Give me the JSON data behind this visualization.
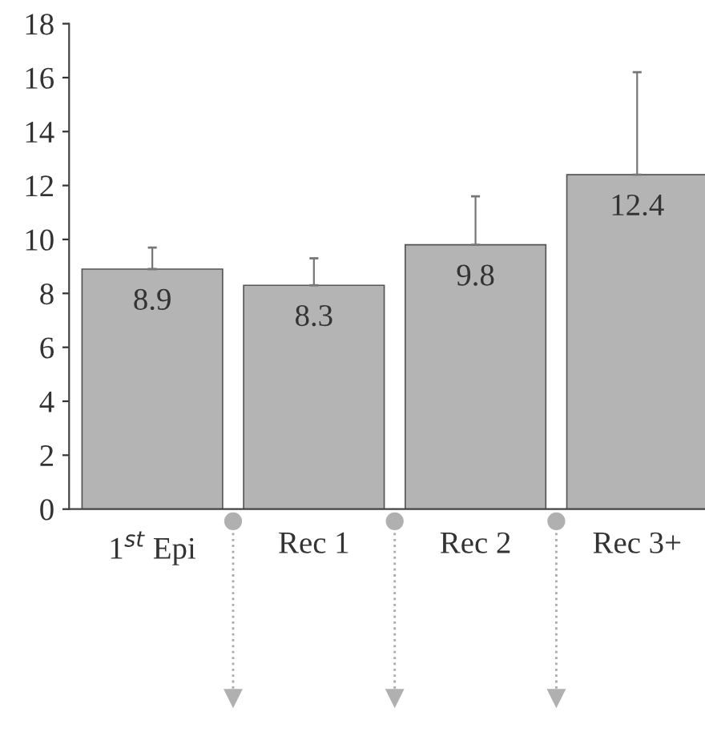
{
  "chart_data": {
    "type": "bar",
    "categories": [
      "1$^{st}$ Epi",
      "Rec 1",
      "Rec 2",
      "Rec 3+"
    ],
    "values": [
      8.9,
      8.3,
      9.8,
      12.4
    ],
    "errors": [
      [
        8.9,
        9.7
      ],
      [
        8.3,
        9.3
      ],
      [
        9.8,
        11.6
      ],
      [
        12.4,
        16.2
      ]
    ],
    "color": "#b4b4b4",
    "data_labels": true,
    "ylim": [
      0,
      18
    ],
    "yticks": [
      0,
      2,
      4,
      6,
      8,
      10,
      12,
      14,
      16,
      18
    ],
    "grid": false,
    "legend": false
  }
}
